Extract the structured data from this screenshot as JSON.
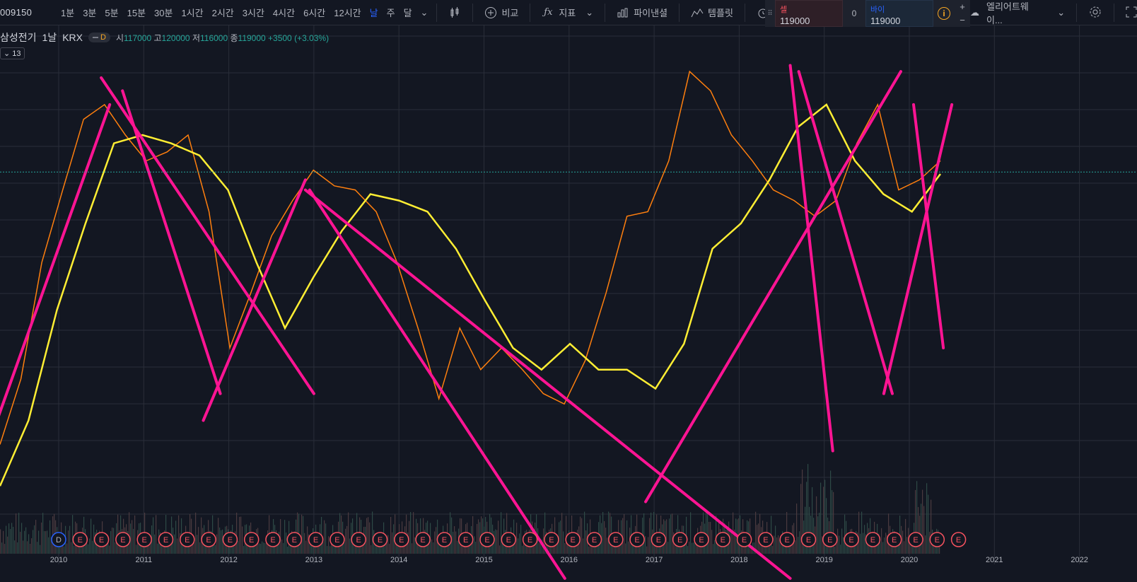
{
  "toolbar": {
    "symbol": "009150",
    "intervals": [
      "1분",
      "3분",
      "5분",
      "15분",
      "30분",
      "1시간",
      "2시간",
      "3시간",
      "4시간",
      "6시간",
      "12시간",
      "날",
      "주",
      "달"
    ],
    "active_interval": "날",
    "compare_label": "비교",
    "indicators_label": "지표",
    "financials_label": "파이낸셜",
    "templates_label": "템플릿",
    "alert_label": "얼",
    "layout_label": "엘리어트웨이..."
  },
  "trade": {
    "sell_label": "셀",
    "sell_price": "119000",
    "spread": "0",
    "buy_label": "바이",
    "buy_price": "119000",
    "plus": "+",
    "minus": "−"
  },
  "legend": {
    "title": "삼성전기",
    "interval": "1날",
    "exchange": "KRX",
    "badge": "D",
    "open_label": "시",
    "open": "117000",
    "high_label": "고",
    "high": "120000",
    "low_label": "저",
    "low": "116000",
    "close_label": "종",
    "close": "119000",
    "change": "+3500 (+3.03%)",
    "study_toggle": "13"
  },
  "colors": {
    "background": "#131722",
    "grid": "#2a2e39",
    "ma_fast": "#ff7f0e",
    "ma_mid": "#ff9b2f",
    "ma_slow": "#ffee33",
    "trendline": "#ff1493",
    "price_line": "#26a69a",
    "up": "#26a69a",
    "down": "#ef5350"
  },
  "chart_data": {
    "type": "line",
    "x_axis_labels": [
      "2010",
      "2011",
      "2012",
      "2013",
      "2014",
      "2015",
      "2016",
      "2017",
      "2018",
      "2019",
      "2020",
      "2021",
      "2022"
    ],
    "series": [
      {
        "values": [
          36000,
          48000,
          80000,
          110000,
          150000,
          160000,
          140000,
          125000,
          130000,
          140000,
          100000,
          55000,
          70000,
          90000,
          105000,
          120000,
          112000,
          110000,
          100000,
          80000,
          60000,
          44000,
          60000,
          50000,
          55000,
          50000,
          45000,
          43000,
          52000,
          70000,
          98000,
          100000,
          125000,
          185000,
          170000,
          140000,
          125000,
          110000,
          105000,
          98000,
          105000,
          135000,
          160000,
          110000,
          115000,
          125000
        ]
      },
      {
        "values": [
          30000,
          40000,
          65000,
          95000,
          135000,
          140000,
          135000,
          128000,
          110000,
          80000,
          60000,
          75000,
          92000,
          108000,
          105000,
          100000,
          85000,
          68000,
          55000,
          50000,
          56000,
          50000,
          50000,
          46000,
          56000,
          85000,
          95000,
          115000,
          145000,
          160000,
          125000,
          108000,
          100000,
          118000
        ]
      }
    ],
    "trendlines": [
      {
        "from": [
          "2009",
          30000
        ],
        "to": [
          "2010.6",
          160000
        ]
      },
      {
        "from": [
          "2010.5",
          180000
        ],
        "to": [
          "2013.0",
          45000
        ]
      },
      {
        "from": [
          "2010.75",
          170000
        ],
        "to": [
          "2011.9",
          45000
        ]
      },
      {
        "from": [
          "2011.7",
          40000
        ],
        "to": [
          "2012.9",
          115000
        ]
      },
      {
        "from": [
          "2012.9",
          110000
        ],
        "to": [
          "2018.6",
          20000
        ]
      },
      {
        "from": [
          "2012.95",
          110000
        ],
        "to": [
          "2015.95",
          20000
        ]
      },
      {
        "from": [
          "2016.9",
          28000
        ],
        "to": [
          "2019.9",
          185000
        ]
      },
      {
        "from": [
          "2018.6",
          190000
        ],
        "to": [
          "2019.1",
          35000
        ]
      },
      {
        "from": [
          "2018.7",
          185000
        ],
        "to": [
          "2019.8",
          45000
        ]
      },
      {
        "from": [
          "2019.7",
          45000
        ],
        "to": [
          "2020.5",
          160000
        ]
      },
      {
        "from": [
          "2020.05",
          160000
        ],
        "to": [
          "2020.4",
          55000
        ]
      }
    ],
    "current_price": 119000,
    "event_markers": [
      "D",
      "E"
    ]
  }
}
